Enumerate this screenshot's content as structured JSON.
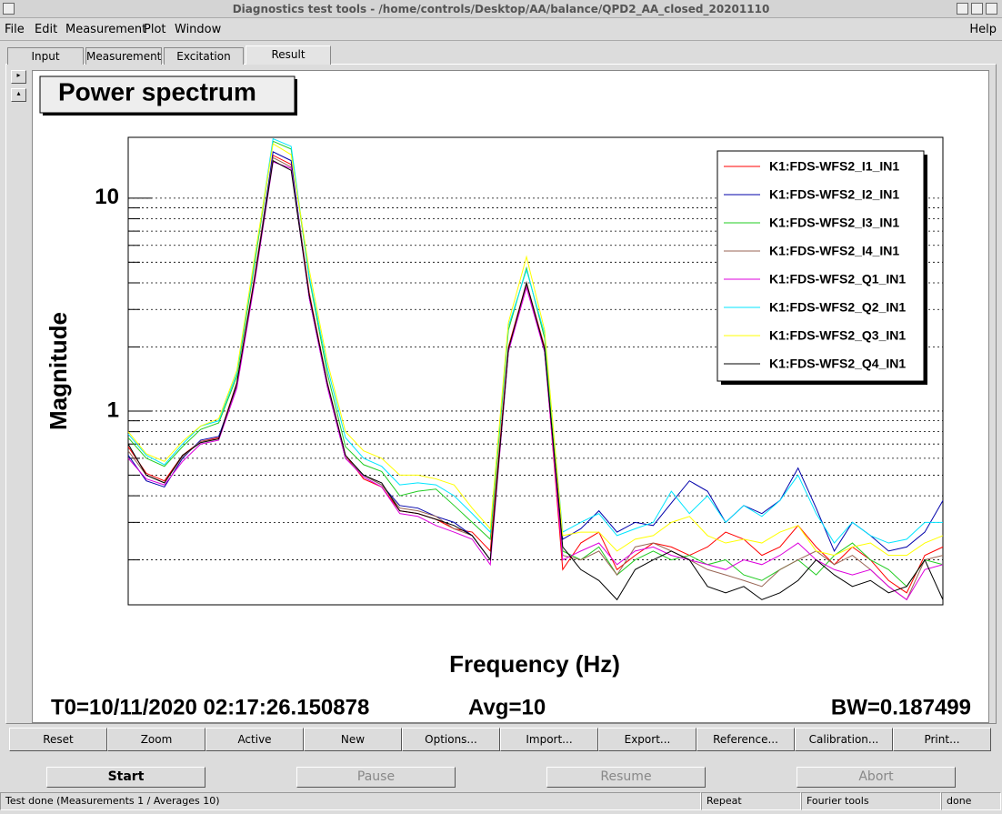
{
  "window": {
    "title": "Diagnostics test tools - /home/controls/Desktop/AA/balance/QPD2_AA_closed_20201110"
  },
  "menu": [
    "File",
    "Edit",
    "Measurement",
    "Plot",
    "Window"
  ],
  "help": "Help",
  "tabs": [
    "Input",
    "Measurement",
    "Excitation",
    "Result"
  ],
  "chart_data": {
    "type": "line",
    "title": "Power spectrum",
    "x_label": "Frequency (Hz)",
    "y_label": "Magnitude",
    "log_y": true,
    "grid": true,
    "legend": "top-right",
    "ylim": [
      0.123,
      19.3
    ],
    "yticks": [
      1,
      10
    ],
    "minor_yticks": [
      0.2,
      0.3,
      0.4,
      0.5,
      0.6,
      0.7,
      0.8,
      0.9,
      2,
      3,
      4,
      5,
      6,
      7,
      8,
      9
    ],
    "categories": [
      null,
      null,
      null,
      null,
      null,
      null,
      null,
      null,
      null,
      null,
      null,
      null,
      null,
      null,
      null,
      null,
      null,
      null,
      null,
      null,
      null,
      null,
      null,
      null,
      null,
      null,
      null,
      null,
      null,
      null,
      null,
      null,
      null,
      null,
      null,
      null,
      null,
      null,
      null,
      null,
      null,
      null,
      null,
      null,
      null,
      null
    ],
    "series": [
      {
        "name": "K1:FDS-WFS2_I1_IN1",
        "color": "#ff0000",
        "values": [
          0.68,
          0.51,
          0.47,
          0.62,
          0.72,
          0.75,
          1.36,
          4.4,
          15.9,
          14.4,
          3.6,
          1.36,
          0.62,
          0.48,
          0.44,
          0.34,
          0.33,
          0.31,
          0.28,
          0.27,
          0.22,
          2.0,
          4.0,
          2.0,
          0.18,
          0.24,
          0.27,
          0.18,
          0.21,
          0.24,
          0.23,
          0.21,
          0.23,
          0.27,
          0.25,
          0.21,
          0.23,
          0.29,
          0.23,
          0.19,
          0.23,
          0.2,
          0.16,
          0.14,
          0.21,
          0.23
        ]
      },
      {
        "name": "K1:FDS-WFS2_I2_IN1",
        "color": "#0000aa",
        "values": [
          0.62,
          0.47,
          0.44,
          0.6,
          0.73,
          0.76,
          1.3,
          4.2,
          16.5,
          15.0,
          3.4,
          1.3,
          0.6,
          0.5,
          0.45,
          0.36,
          0.35,
          0.32,
          0.3,
          0.26,
          0.2,
          1.9,
          3.9,
          1.9,
          0.25,
          0.28,
          0.34,
          0.27,
          0.3,
          0.29,
          0.37,
          0.47,
          0.42,
          0.3,
          0.36,
          0.33,
          0.38,
          0.54,
          0.35,
          0.22,
          0.3,
          0.26,
          0.22,
          0.23,
          0.27,
          0.38
        ]
      },
      {
        "name": "K1:FDS-WFS2_I3_IN1",
        "color": "#22cc22",
        "values": [
          0.75,
          0.6,
          0.55,
          0.68,
          0.82,
          0.88,
          1.45,
          5.0,
          18.5,
          17.0,
          4.2,
          1.5,
          0.68,
          0.56,
          0.52,
          0.4,
          0.42,
          0.43,
          0.36,
          0.3,
          0.25,
          2.4,
          4.7,
          2.2,
          0.22,
          0.2,
          0.23,
          0.17,
          0.2,
          0.22,
          0.2,
          0.21,
          0.19,
          0.2,
          0.17,
          0.16,
          0.18,
          0.2,
          0.17,
          0.21,
          0.24,
          0.2,
          0.18,
          0.15,
          0.2,
          0.19
        ]
      },
      {
        "name": "K1:FDS-WFS2_I4_IN1",
        "color": "#996655",
        "values": [
          0.65,
          0.5,
          0.46,
          0.61,
          0.72,
          0.74,
          1.33,
          4.3,
          15.5,
          14.0,
          3.5,
          1.33,
          0.6,
          0.5,
          0.45,
          0.35,
          0.34,
          0.32,
          0.28,
          0.26,
          0.2,
          1.95,
          3.9,
          1.95,
          0.21,
          0.2,
          0.22,
          0.17,
          0.23,
          0.24,
          0.22,
          0.2,
          0.18,
          0.17,
          0.16,
          0.15,
          0.18,
          0.2,
          0.22,
          0.19,
          0.21,
          0.18,
          0.15,
          0.13,
          0.2,
          0.21
        ]
      },
      {
        "name": "K1:FDS-WFS2_Q1_IN1",
        "color": "#dd00dd",
        "values": [
          0.6,
          0.48,
          0.45,
          0.58,
          0.7,
          0.73,
          1.28,
          4.1,
          14.8,
          13.8,
          3.4,
          1.3,
          0.6,
          0.49,
          0.44,
          0.33,
          0.32,
          0.29,
          0.27,
          0.25,
          0.19,
          1.9,
          3.8,
          1.9,
          0.2,
          0.22,
          0.24,
          0.19,
          0.22,
          0.23,
          0.21,
          0.2,
          0.19,
          0.18,
          0.2,
          0.19,
          0.21,
          0.24,
          0.2,
          0.18,
          0.17,
          0.18,
          0.15,
          0.13,
          0.18,
          0.19
        ]
      },
      {
        "name": "K1:FDS-WFS2_Q2_IN1",
        "color": "#00e5ff",
        "values": [
          0.78,
          0.62,
          0.56,
          0.7,
          0.85,
          0.9,
          1.5,
          5.2,
          19.0,
          17.5,
          4.3,
          1.6,
          0.75,
          0.6,
          0.55,
          0.45,
          0.46,
          0.45,
          0.4,
          0.33,
          0.27,
          2.5,
          4.6,
          2.3,
          0.27,
          0.3,
          0.33,
          0.26,
          0.28,
          0.3,
          0.42,
          0.33,
          0.4,
          0.3,
          0.36,
          0.32,
          0.38,
          0.5,
          0.33,
          0.24,
          0.3,
          0.26,
          0.24,
          0.25,
          0.3,
          0.3
        ]
      },
      {
        "name": "K1:FDS-WFS2_Q3_IN1",
        "color": "#ffff00",
        "values": [
          0.8,
          0.63,
          0.58,
          0.72,
          0.85,
          0.92,
          1.55,
          5.4,
          18.0,
          16.0,
          4.6,
          1.7,
          0.8,
          0.65,
          0.6,
          0.5,
          0.5,
          0.48,
          0.45,
          0.35,
          0.28,
          2.6,
          5.3,
          2.4,
          0.26,
          0.27,
          0.27,
          0.22,
          0.25,
          0.26,
          0.3,
          0.32,
          0.26,
          0.24,
          0.25,
          0.24,
          0.27,
          0.29,
          0.22,
          0.21,
          0.23,
          0.24,
          0.21,
          0.21,
          0.24,
          0.26
        ]
      },
      {
        "name": "K1:FDS-WFS2_Q4_IN1",
        "color": "#000000",
        "values": [
          0.7,
          0.5,
          0.46,
          0.62,
          0.71,
          0.74,
          1.35,
          4.3,
          15.0,
          13.5,
          3.5,
          1.35,
          0.62,
          0.5,
          0.46,
          0.34,
          0.33,
          0.31,
          0.29,
          0.26,
          0.2,
          1.95,
          4.0,
          1.95,
          0.23,
          0.18,
          0.16,
          0.13,
          0.18,
          0.2,
          0.22,
          0.2,
          0.15,
          0.14,
          0.15,
          0.13,
          0.14,
          0.16,
          0.2,
          0.17,
          0.15,
          0.16,
          0.14,
          0.15,
          0.2,
          0.13
        ]
      }
    ]
  },
  "plot_info": {
    "t0": "T0=10/11/2020 02:17:26.150878",
    "avg": "Avg=10",
    "bw": "BW=0.187499"
  },
  "plot_buttons": [
    "Reset",
    "Zoom",
    "Active",
    "New",
    "Options...",
    "Import...",
    "Export...",
    "Reference...",
    "Calibration...",
    "Print..."
  ],
  "control_buttons": [
    "Start",
    "Pause",
    "Resume",
    "Abort"
  ],
  "status": [
    "Test done (Measurements 1 / Averages 10)",
    "Repeat",
    "Fourier tools",
    "done"
  ]
}
